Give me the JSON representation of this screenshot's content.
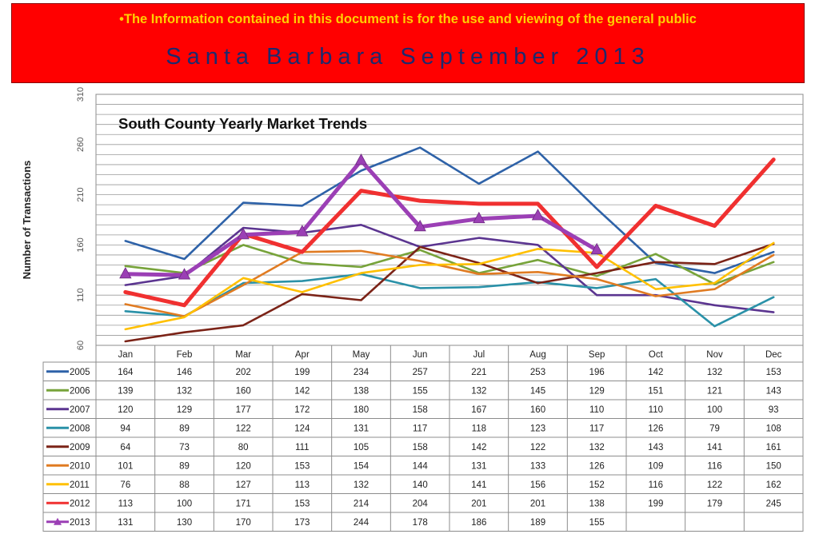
{
  "banner": {
    "notice": "•The Information contained in this document is for the use and viewing of the general public",
    "title": "Santa Barbara September 2013"
  },
  "colors": {
    "banner_bg": "#ff0000",
    "notice_text": "#ffd000",
    "title_text": "#1c2a6e"
  },
  "chart_data": {
    "type": "line",
    "title": "South County Yearly Market Trends",
    "xlabel": "",
    "ylabel": "Number of Transactions",
    "ylim": [
      60,
      310
    ],
    "yticks": [
      60,
      110,
      160,
      210,
      260,
      310
    ],
    "grid": true,
    "legend": "data-table",
    "categories": [
      "Jan",
      "Feb",
      "Mar",
      "Apr",
      "May",
      "Jun",
      "Jul",
      "Aug",
      "Sep",
      "Oct",
      "Nov",
      "Dec"
    ],
    "series": [
      {
        "name": "2005",
        "color": "#2e62a8",
        "values": [
          164,
          146,
          202,
          199,
          234,
          257,
          221,
          253,
          196,
          142,
          132,
          153
        ]
      },
      {
        "name": "2006",
        "color": "#77a33a",
        "values": [
          139,
          132,
          160,
          142,
          138,
          155,
          132,
          145,
          129,
          151,
          121,
          143
        ]
      },
      {
        "name": "2007",
        "color": "#5b3590",
        "values": [
          120,
          129,
          177,
          172,
          180,
          158,
          167,
          160,
          110,
          110,
          100,
          93
        ]
      },
      {
        "name": "2008",
        "color": "#2a91a8",
        "values": [
          94,
          89,
          122,
          124,
          131,
          117,
          118,
          123,
          117,
          126,
          79,
          108
        ]
      },
      {
        "name": "2009",
        "color": "#7b2317",
        "values": [
          64,
          73,
          80,
          111,
          105,
          158,
          142,
          122,
          132,
          143,
          141,
          161
        ]
      },
      {
        "name": "2010",
        "color": "#e07b22",
        "values": [
          101,
          89,
          120,
          153,
          154,
          144,
          131,
          133,
          126,
          109,
          116,
          150
        ]
      },
      {
        "name": "2011",
        "color": "#ffc000",
        "values": [
          76,
          88,
          127,
          113,
          132,
          140,
          141,
          156,
          152,
          116,
          122,
          162
        ]
      },
      {
        "name": "2012",
        "color": "#f03030",
        "values": [
          113,
          100,
          171,
          153,
          214,
          204,
          201,
          201,
          138,
          199,
          179,
          245
        ]
      },
      {
        "name": "2013",
        "color": "#9b3fb5",
        "marker": "triangle",
        "values": [
          131,
          130,
          170,
          173,
          244,
          178,
          186,
          189,
          155,
          null,
          null,
          null
        ]
      }
    ]
  }
}
